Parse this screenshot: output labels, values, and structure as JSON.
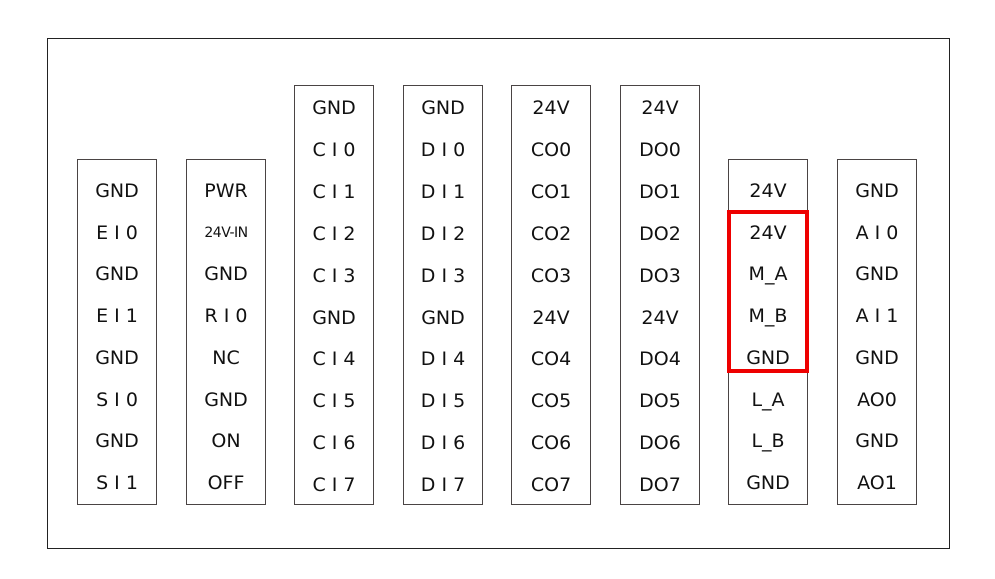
{
  "columns": [
    {
      "id": "col-ei-si",
      "pins": [
        "GND",
        "E I 0",
        "GND",
        "E I 1",
        "GND",
        "S I 0",
        "GND",
        "S I 1"
      ]
    },
    {
      "id": "col-pwr",
      "pins": [
        "PWR",
        "24V-IN",
        "GND",
        "R I 0",
        "NC",
        "GND",
        "ON",
        "OFF"
      ]
    },
    {
      "id": "col-ci",
      "pins": [
        "GND",
        "C I 0",
        "C I 1",
        "C I 2",
        "C I 3",
        "GND",
        "C I 4",
        "C I 5",
        "C I 6",
        "C I 7"
      ]
    },
    {
      "id": "col-di",
      "pins": [
        "GND",
        "D I 0",
        "D I 1",
        "D I 2",
        "D I 3",
        "GND",
        "D I 4",
        "D I 5",
        "D I 6",
        "D I 7"
      ]
    },
    {
      "id": "col-co",
      "pins": [
        "24V",
        "CO0",
        "CO1",
        "CO2",
        "CO3",
        "24V",
        "CO4",
        "CO5",
        "CO6",
        "CO7"
      ]
    },
    {
      "id": "col-do",
      "pins": [
        "24V",
        "DO0",
        "DO1",
        "DO2",
        "DO3",
        "24V",
        "DO4",
        "DO5",
        "DO6",
        "DO7"
      ]
    },
    {
      "id": "col-motor",
      "pins": [
        "24V",
        "24V",
        "M_A",
        "M_B",
        "GND",
        "L_A",
        "L_B",
        "GND"
      ]
    },
    {
      "id": "col-ai-ao",
      "pins": [
        "GND",
        "A I 0",
        "GND",
        "A I 1",
        "GND",
        "AO0",
        "GND",
        "AO1"
      ]
    }
  ],
  "highlight": {
    "column": "col-motor",
    "pins": [
      "24V",
      "M_A",
      "M_B",
      "GND"
    ],
    "color": "#ee0000"
  }
}
